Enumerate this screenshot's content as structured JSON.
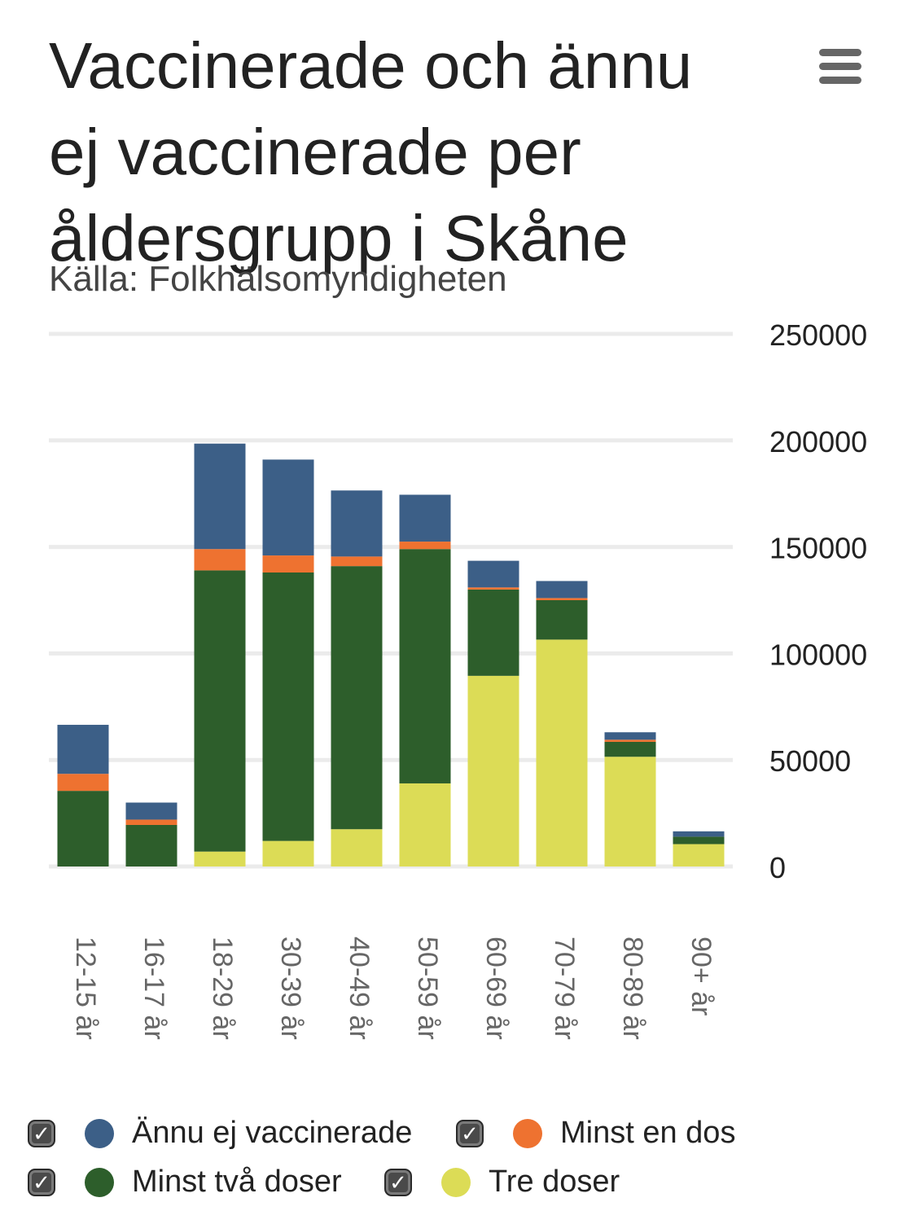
{
  "header": {
    "title": "Vaccinerade och ännu ej vaccinerade per åldersgrupp i Skåne",
    "subtitle": "Källa: Folkhälsomyndigheten",
    "menu_icon": "hamburger-menu-icon"
  },
  "chart_data": {
    "type": "bar",
    "stacked": true,
    "title": "Vaccinerade och ännu ej vaccinerade per åldersgrupp i Skåne",
    "subtitle": "Källa: Folkhälsomyndigheten",
    "xlabel": "",
    "ylabel": "",
    "y_axis_position": "right",
    "ylim": [
      0,
      250000
    ],
    "yticks": [
      "0",
      "50000",
      "100000",
      "150000",
      "200000",
      "250000"
    ],
    "grid": true,
    "legend_position": "bottom",
    "categories": [
      "12-15 år",
      "16-17 år",
      "18-29 år",
      "30-39 år",
      "40-49 år",
      "50-59 år",
      "60-69 år",
      "70-79 år",
      "80-89 år",
      "90+ år"
    ],
    "series": [
      {
        "name": "Tre doser",
        "color": "#dcdc56",
        "values": [
          0,
          0,
          7000,
          12000,
          17500,
          39000,
          89500,
          106500,
          51500,
          10500
        ]
      },
      {
        "name": "Minst två doser",
        "color": "#2d5e2b",
        "values": [
          35500,
          19500,
          132000,
          126000,
          123500,
          110000,
          40500,
          18500,
          7000,
          3500
        ]
      },
      {
        "name": "Minst en dos",
        "color": "#ee7230",
        "values": [
          8000,
          2500,
          10000,
          8000,
          4500,
          3500,
          1000,
          1000,
          1000,
          0
        ]
      },
      {
        "name": "Ännu ej vaccinerade",
        "color": "#3c5f87",
        "values": [
          23000,
          8000,
          49500,
          45000,
          31000,
          22000,
          12500,
          8000,
          3500,
          2500
        ]
      }
    ]
  },
  "legend": {
    "items": [
      {
        "label": "Ännu ej vaccinerade",
        "color": "#3c5f87",
        "checked": "✓"
      },
      {
        "label": "Minst en dos",
        "color": "#ee7230",
        "checked": "✓"
      },
      {
        "label": "Minst två doser",
        "color": "#2d5e2b",
        "checked": "✓"
      },
      {
        "label": "Tre doser",
        "color": "#dcdc56",
        "checked": "✓"
      }
    ]
  }
}
